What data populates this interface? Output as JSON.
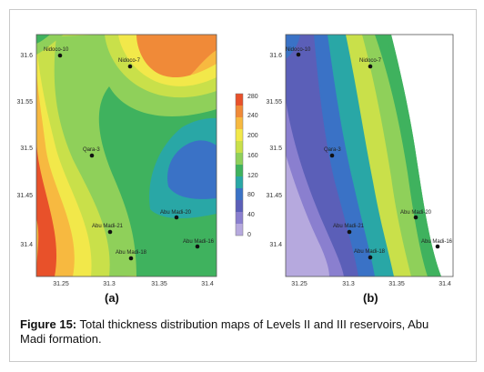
{
  "figure": {
    "label": "Figure 15:",
    "text": "Total thickness distribution maps of Levels II and III reservoirs, Abu Madi formation."
  },
  "panels": [
    {
      "label": "(a)",
      "x_ticks": [
        "31.25",
        "31.3",
        "31.35",
        "31.4"
      ],
      "y_ticks": [
        "31.6",
        "31.55",
        "31.5",
        "31.45",
        "31.4"
      ],
      "wells": [
        "Nidoco-10",
        "Nidoco-7",
        "Qara-3",
        "Abu Madi-20",
        "Abu Madi-21",
        "Abu Madi-18",
        "Abu Madi-16"
      ]
    },
    {
      "label": "(b)",
      "x_ticks": [
        "31.25",
        "31.3",
        "31.35",
        "31.4"
      ],
      "y_ticks": [
        "31.6",
        "31.55",
        "31.5",
        "31.45",
        "31.4"
      ],
      "wells": [
        "Nidoco-10",
        "Nidoco-7",
        "Qara-3",
        "Abu Madi-20",
        "Abu Madi-21",
        "Abu Madi-18",
        "Abu Madi-16"
      ]
    }
  ],
  "colorbar": {
    "ticks": [
      "280",
      "240",
      "200",
      "160",
      "120",
      "80",
      "40",
      "0"
    ],
    "colors": [
      "#e8512a",
      "#f08a38",
      "#f7b940",
      "#f2e84a",
      "#c9e04a",
      "#8fd05a",
      "#3fb25e",
      "#29a7a6",
      "#3a72c6",
      "#5b5fb8",
      "#8a7fcf",
      "#b6a9de"
    ]
  }
}
